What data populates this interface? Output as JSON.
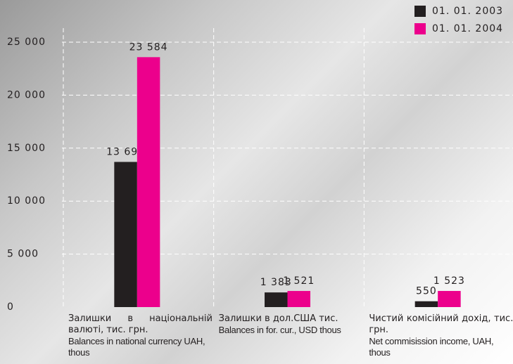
{
  "chart_data": {
    "type": "bar",
    "categories": [
      "Залишки в національній валюті, тис. грн.",
      "Залишки в дол.США тис.",
      "Чистий комісійний дохід, тис. грн."
    ],
    "categories_en": [
      "Balances in national currency UAH, thous",
      "Balances in for. cur., USD thous",
      "Net commisission income, UAH, thous"
    ],
    "series": [
      {
        "name": "01. 01. 2003",
        "color": "#231f20",
        "values": [
          13698,
          1383,
          550
        ],
        "value_labels": [
          "13 698",
          "1 383",
          "550"
        ]
      },
      {
        "name": "01. 01. 2004",
        "color": "#ec008c",
        "values": [
          23584,
          1521,
          1523
        ],
        "value_labels": [
          "23 584",
          "1 521",
          "1 523"
        ]
      }
    ],
    "ylim": [
      0,
      25000
    ],
    "yticks": [
      0,
      {
        "value": 5000,
        "label": "5 000"
      },
      {
        "value": 10000,
        "label": "10 000"
      },
      {
        "value": 15000,
        "label": "15 000"
      },
      {
        "value": 20000,
        "label": "20 000"
      },
      {
        "value": 25000,
        "label": "25 000"
      }
    ],
    "grid": true,
    "legend": "top-right"
  }
}
